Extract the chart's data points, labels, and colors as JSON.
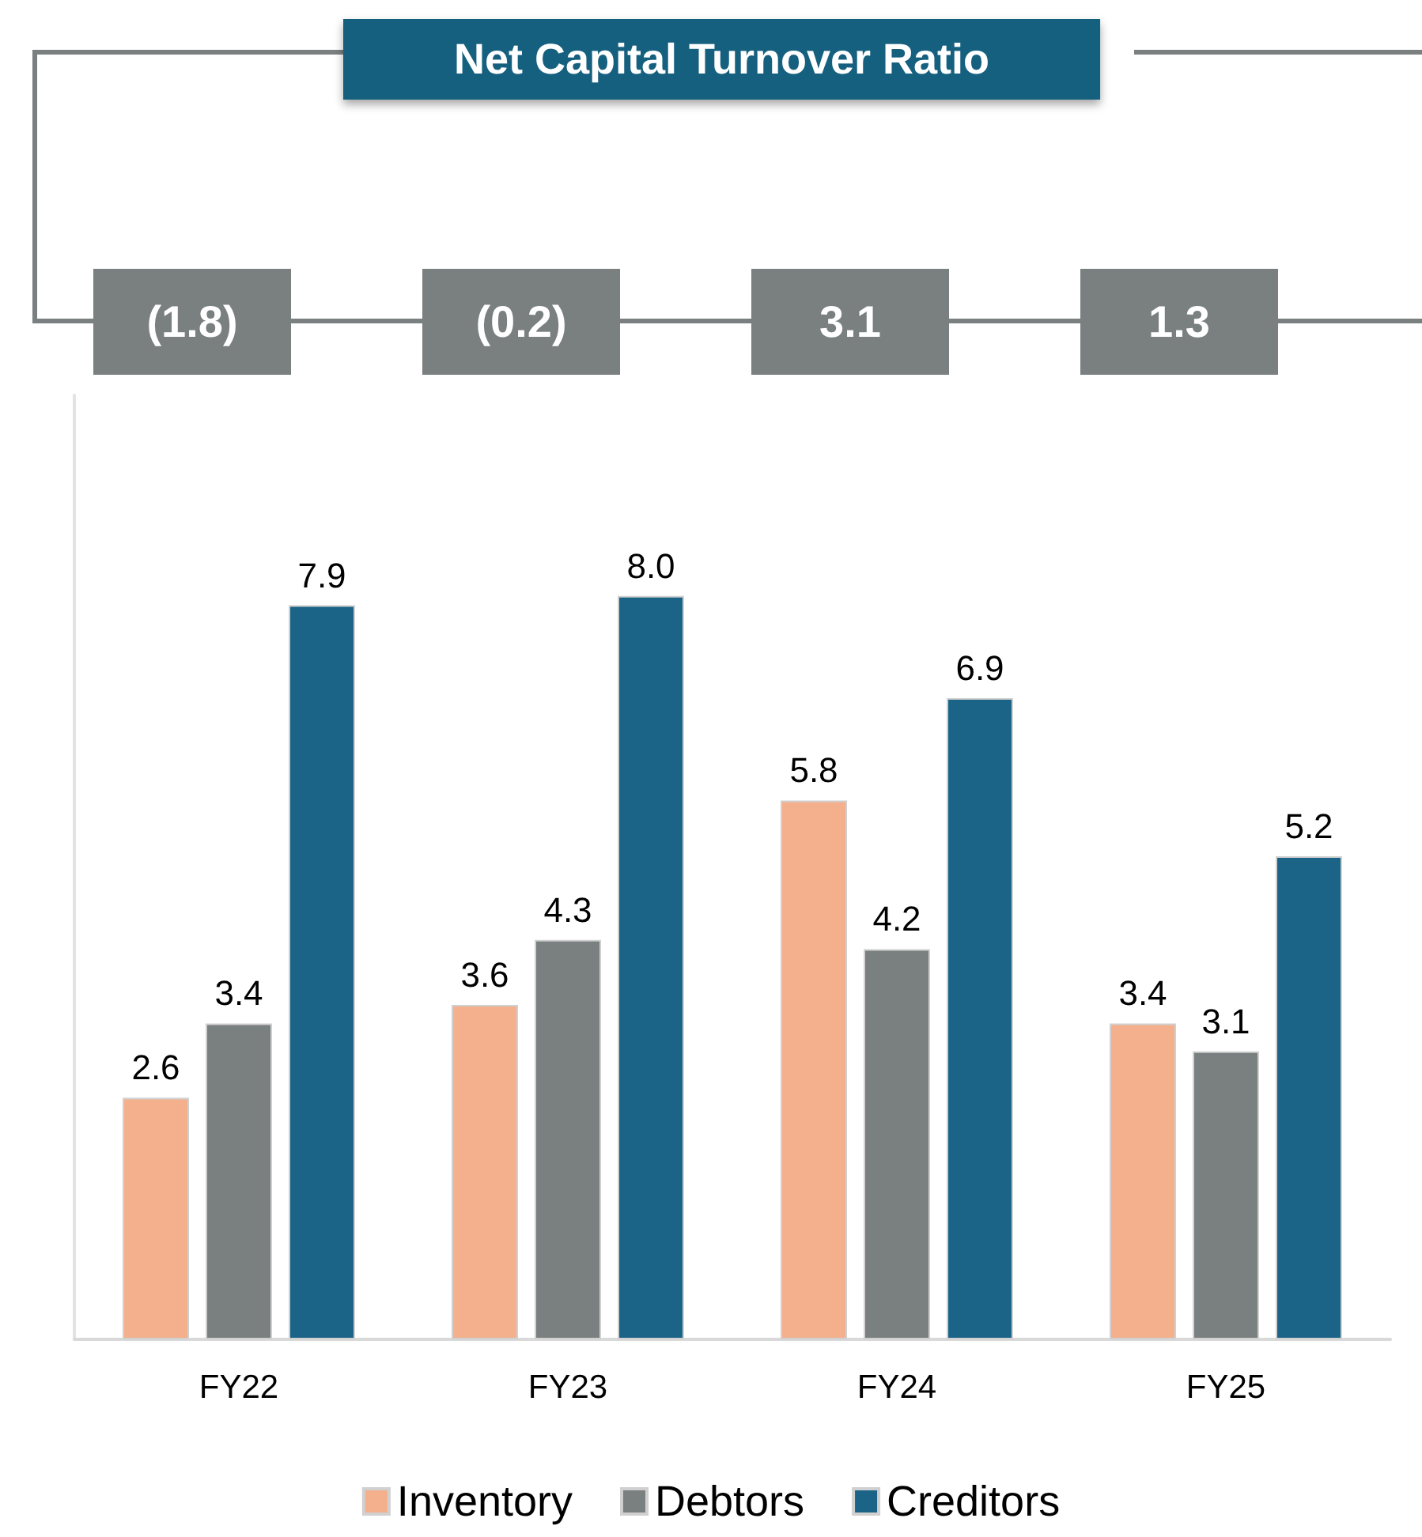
{
  "chart_data": {
    "type": "bar",
    "title": "Net Capital Turnover Ratio",
    "categories": [
      "FY22",
      "FY23",
      "FY24",
      "FY25"
    ],
    "series": [
      {
        "name": "Inventory",
        "color": "#f4b08c",
        "values": [
          2.6,
          3.6,
          5.8,
          3.4
        ],
        "value_labels": [
          "2.6",
          "3.6",
          "5.8",
          "3.4"
        ]
      },
      {
        "name": "Debtors",
        "color": "#7a7f80",
        "values": [
          3.4,
          4.3,
          4.2,
          3.1
        ],
        "value_labels": [
          "3.4",
          "4.3",
          "4.2",
          "3.1"
        ]
      },
      {
        "name": "Creditors",
        "color": "#1b6487",
        "values": [
          7.9,
          8.0,
          6.9,
          5.2
        ],
        "value_labels": [
          "7.9",
          "8.0",
          "6.9",
          "5.2"
        ]
      }
    ],
    "annotations": [
      "(1.8)",
      "(0.2)",
      "3.1",
      "1.3"
    ],
    "grid": false,
    "legend": "bottom"
  }
}
